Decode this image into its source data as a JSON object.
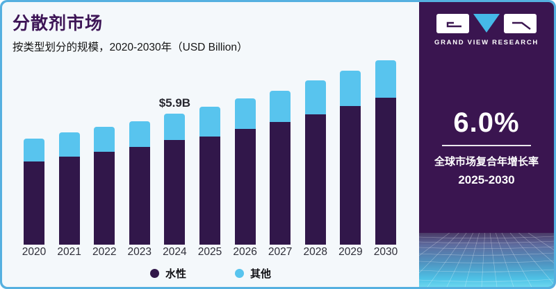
{
  "header": {
    "title": "分散剂市场",
    "subtitle": "按类型划分的规模，2020-2030年（USD Billion）"
  },
  "chart_data": {
    "type": "bar",
    "stacked": true,
    "title": "分散剂市场",
    "subtitle": "按类型划分的规模，2020-2030年（USD Billion）",
    "unit": "USD Billion",
    "categories": [
      "2020",
      "2021",
      "2022",
      "2023",
      "2024",
      "2025",
      "2026",
      "2027",
      "2028",
      "2029",
      "2030"
    ],
    "series": [
      {
        "name": "水性",
        "color": "#31174a",
        "values": [
          3.75,
          3.96,
          4.18,
          4.42,
          4.71,
          4.89,
          5.22,
          5.53,
          5.87,
          6.24,
          6.64
        ]
      },
      {
        "name": "其他",
        "color": "#58c4ee",
        "values": [
          1.03,
          1.09,
          1.12,
          1.17,
          1.19,
          1.33,
          1.36,
          1.4,
          1.52,
          1.6,
          1.7
        ]
      }
    ],
    "totals": [
      4.78,
      5.05,
      5.3,
      5.59,
      5.9,
      6.22,
      6.58,
      6.93,
      7.39,
      7.84,
      8.34
    ],
    "annotation": {
      "category": "2024",
      "text": "$5.9B"
    },
    "ylim": [
      0,
      8.6
    ],
    "grid": false,
    "legend_position": "bottom"
  },
  "legend": {
    "items": [
      {
        "label": "水性",
        "color": "#31174a"
      },
      {
        "label": "其他",
        "color": "#58c4ee"
      }
    ]
  },
  "sidebar": {
    "brand": "GRAND VIEW RESEARCH",
    "cagr": {
      "value": "6.0%",
      "label": "全球市场复合年增长率",
      "period": "2025-2030"
    }
  },
  "colors": {
    "frame_border": "#55b0e0",
    "chart_bg": "#f4f8fb",
    "panel_bg": "#3a1550",
    "title": "#3d1556",
    "water_series": "#31174a",
    "other_series": "#58c4ee",
    "logo_triangle": "#45b9e8"
  }
}
